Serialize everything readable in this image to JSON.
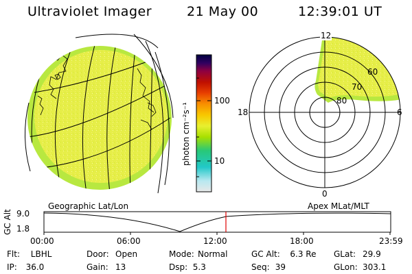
{
  "header": {
    "instrument": "Ultraviolet Imager",
    "date": "21 May 00",
    "time": "12:39:01 UT"
  },
  "colorbar": {
    "label": "photon cm⁻²s⁻¹",
    "ticks": [
      "100",
      "10"
    ],
    "gradient": [
      "#e8e8e8",
      "#b8e8f0",
      "#22c8c8",
      "#28c878",
      "#a8e000",
      "#e8f030",
      "#f8c800",
      "#f89000",
      "#e84000",
      "#c01000",
      "#900040",
      "#300060",
      "#000040"
    ]
  },
  "globe": {
    "label": "Geographic Lat/Lon"
  },
  "polar": {
    "label": "Apex MLat/MLT",
    "mlt_labels": [
      "12",
      "18",
      "6",
      "0"
    ],
    "lat_labels": [
      "60",
      "70",
      "80"
    ]
  },
  "altitude_plot": {
    "ylabel": "GC Alt",
    "y_ticks": [
      "9.0",
      "1.8"
    ],
    "x_ticks": [
      "00:00",
      "06:00",
      "12:00",
      "18:00",
      "23:59"
    ],
    "marker_time": "12:39",
    "marker_color": "#e00000"
  },
  "info": {
    "row1": [
      {
        "k": "Flt:",
        "v": "LBHL"
      },
      {
        "k": "Door:",
        "v": "Open"
      },
      {
        "k": "Mode:",
        "v": "Normal"
      },
      {
        "k": "GC Alt:",
        "v": "6.3 Re"
      },
      {
        "k": "GLat:",
        "v": "29.9"
      }
    ],
    "row2": [
      {
        "k": "IP:",
        "v": "36.0"
      },
      {
        "k": "Gain:",
        "v": "13"
      },
      {
        "k": "Dsp:",
        "v": "5.3"
      },
      {
        "k": "Seq:",
        "v": "39"
      },
      {
        "k": "GLon:",
        "v": "303.1"
      }
    ]
  }
}
